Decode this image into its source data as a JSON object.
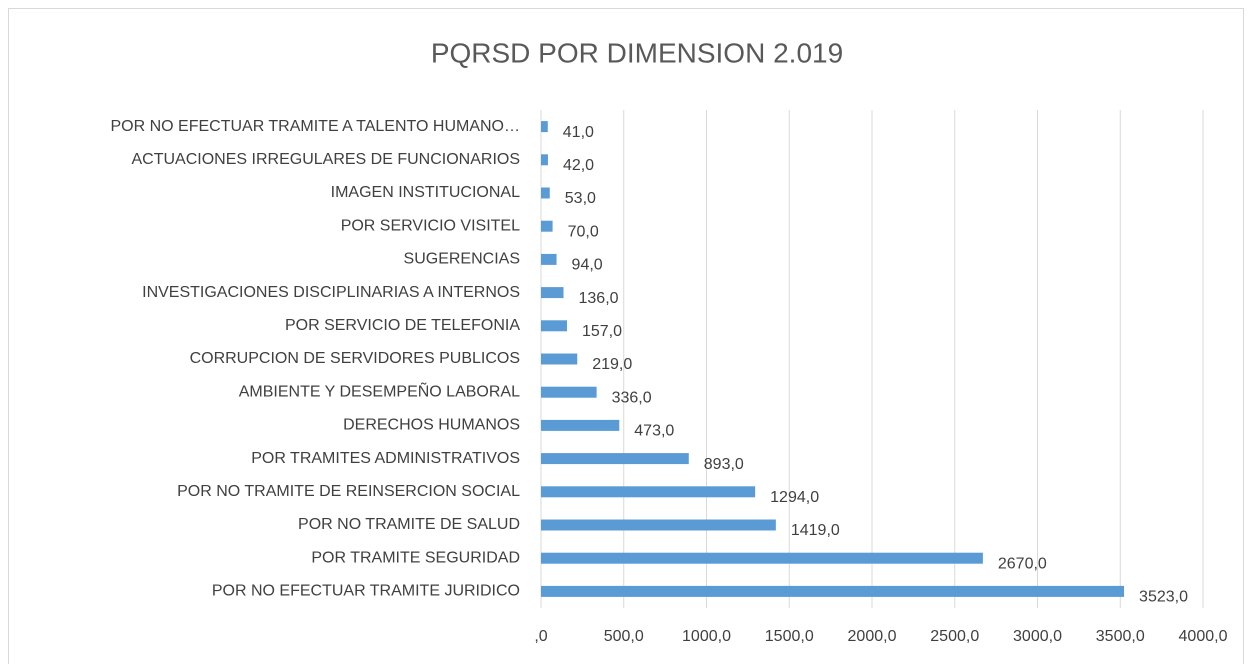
{
  "chart_data": {
    "type": "barh",
    "title": "PQRSD POR DIMENSION 2.019",
    "categories": [
      "POR NO EFECTUAR TRAMITE A TALENTO HUMANO…",
      "ACTUACIONES IRREGULARES DE FUNCIONARIOS",
      "IMAGEN INSTITUCIONAL",
      "POR SERVICIO VISITEL",
      "SUGERENCIAS",
      "INVESTIGACIONES DISCIPLINARIAS A INTERNOS",
      "POR SERVICIO DE TELEFONIA",
      "CORRUPCION DE SERVIDORES PUBLICOS",
      "AMBIENTE Y DESEMPEÑO LABORAL",
      "DERECHOS HUMANOS",
      "POR TRAMITES ADMINISTRATIVOS",
      "POR NO TRAMITE DE REINSERCION SOCIAL",
      "POR NO TRAMITE DE SALUD",
      "POR TRAMITE SEGURIDAD",
      "POR NO EFECTUAR TRAMITE JURIDICO"
    ],
    "values": [
      41,
      42,
      53,
      70,
      94,
      136,
      157,
      219,
      336,
      473,
      893,
      1294,
      1419,
      2670,
      3523
    ],
    "value_labels": [
      "41,0",
      "42,0",
      "53,0",
      "70,0",
      "94,0",
      "136,0",
      "157,0",
      "219,0",
      "336,0",
      "473,0",
      "893,0",
      "1294,0",
      "1419,0",
      "2670,0",
      "3523,0"
    ],
    "color": "#5b9bd5",
    "xlim": [
      0,
      4000
    ],
    "xticks": [
      {
        "value": 0,
        "label": ",0"
      },
      {
        "value": 500,
        "label": "500,0"
      },
      {
        "value": 1000,
        "label": "1000,0"
      },
      {
        "value": 1500,
        "label": "1500,0"
      },
      {
        "value": 2000,
        "label": "2000,0"
      },
      {
        "value": 2500,
        "label": "2500,0"
      },
      {
        "value": 3000,
        "label": "3000,0"
      },
      {
        "value": 3500,
        "label": "3500,0"
      },
      {
        "value": 4000,
        "label": "4000,0"
      }
    ],
    "grid": true
  }
}
